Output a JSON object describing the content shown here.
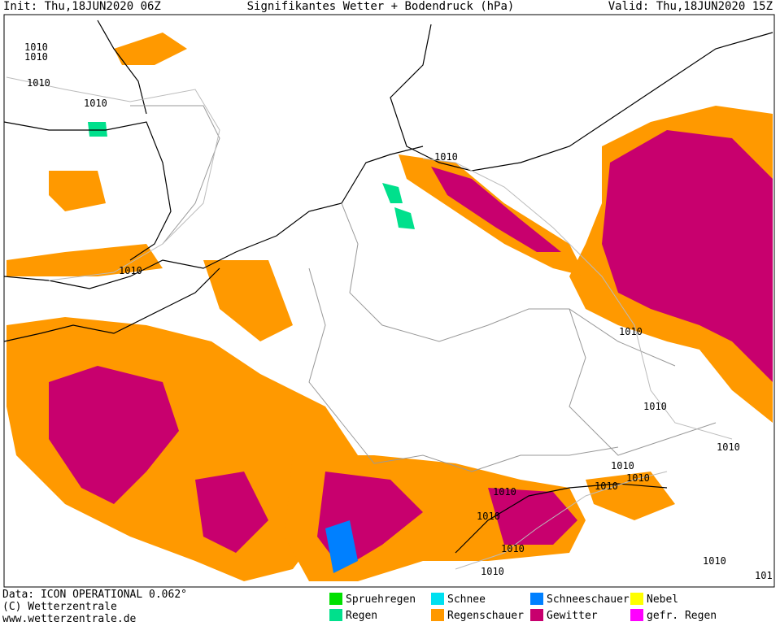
{
  "header": {
    "init": "Init: Thu,18JUN2020 06Z",
    "title": "Signifikantes Wetter +  Bodendruck (hPa)",
    "valid": "Valid: Thu,18JUN2020 15Z"
  },
  "map": {
    "pressure_labels": [
      "1010",
      "1010",
      "1010",
      "1010",
      "1010",
      "1010",
      "1010",
      "1010",
      "1010",
      "1010",
      "1010",
      "1010",
      "1010",
      "1010",
      "1010",
      "1010",
      "1010",
      "101"
    ]
  },
  "footer": [
    "Data: ICON OPERATIONAL 0.062°",
    "(C) Wetterzentrale",
    "www.wetterzentrale.de"
  ],
  "legend": [
    {
      "name": "Spruehregen",
      "color": "#00e000"
    },
    {
      "name": "Regen",
      "color": "#00e08c"
    },
    {
      "name": "Schnee",
      "color": "#00e0f0"
    },
    {
      "name": "Regenschauer",
      "color": "#ff9900"
    },
    {
      "name": "Schneeschauer",
      "color": "#0080ff"
    },
    {
      "name": "Gewitter",
      "color": "#c8006e"
    },
    {
      "name": "Nebel",
      "color": "#ffff00"
    },
    {
      "name": "gefr. Regen",
      "color": "#ff00ff"
    }
  ]
}
